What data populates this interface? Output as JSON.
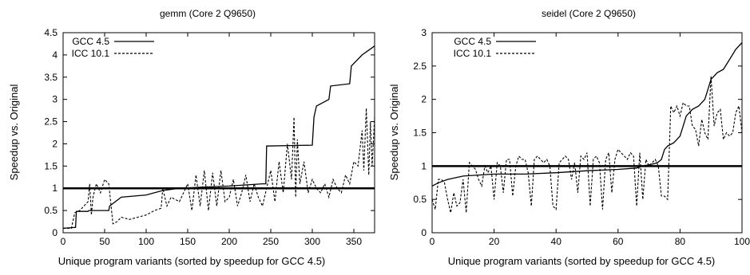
{
  "chart_data": [
    {
      "type": "line",
      "title": "gemm (Core 2 Q9650)",
      "xlabel": "Unique program variants (sorted by speedup for GCC 4.5)",
      "ylabel": "Speedup vs. Original",
      "xlim": [
        0,
        375
      ],
      "ylim": [
        0,
        4.5
      ],
      "xticks": [
        0,
        50,
        100,
        150,
        200,
        250,
        300,
        350
      ],
      "yticks": [
        0,
        0.5,
        1,
        1.5,
        2,
        2.5,
        3,
        3.5,
        4,
        4.5
      ],
      "baseline": 1,
      "legend_position": "top-left",
      "series": [
        {
          "name": "GCC 4.5",
          "style": "solid",
          "x": [
            0,
            15,
            16,
            30,
            31,
            55,
            56,
            70,
            100,
            120,
            140,
            160,
            200,
            240,
            244,
            245,
            300,
            302,
            305,
            320,
            322,
            345,
            347,
            360,
            375
          ],
          "y": [
            0.1,
            0.12,
            0.48,
            0.48,
            0.5,
            0.5,
            0.6,
            0.8,
            0.85,
            0.95,
            1.0,
            1.02,
            1.05,
            1.1,
            1.1,
            1.95,
            1.97,
            2.6,
            2.85,
            3.0,
            3.3,
            3.35,
            3.75,
            4.0,
            4.2
          ]
        },
        {
          "name": "ICC 10.1",
          "style": "dashed",
          "x": [
            0,
            10,
            14,
            20,
            25,
            30,
            32,
            34,
            36,
            40,
            45,
            50,
            55,
            60,
            65,
            70,
            80,
            90,
            100,
            110,
            118,
            120,
            125,
            130,
            140,
            150,
            155,
            160,
            165,
            170,
            175,
            180,
            185,
            190,
            195,
            200,
            205,
            210,
            215,
            220,
            225,
            230,
            235,
            240,
            245,
            250,
            255,
            260,
            265,
            270,
            275,
            278,
            280,
            282,
            285,
            290,
            295,
            300,
            305,
            310,
            315,
            320,
            325,
            330,
            335,
            340,
            345,
            350,
            355,
            360,
            362,
            365,
            368,
            370,
            372,
            375
          ],
          "y": [
            0.1,
            0.1,
            0.45,
            0.5,
            0.6,
            0.7,
            1.1,
            0.4,
            0.8,
            1.1,
            0.9,
            1.2,
            1.1,
            0.2,
            0.25,
            0.35,
            0.3,
            0.35,
            0.4,
            0.5,
            0.55,
            1.0,
            0.6,
            0.8,
            0.7,
            1.1,
            0.5,
            1.3,
            0.6,
            1.4,
            0.5,
            1.35,
            0.6,
            1.4,
            0.7,
            0.8,
            1.2,
            0.6,
            0.9,
            1.3,
            0.7,
            1.1,
            0.8,
            0.6,
            1.0,
            1.4,
            0.7,
            1.6,
            0.9,
            2.0,
            1.2,
            2.6,
            0.8,
            2.1,
            1.1,
            1.6,
            0.9,
            1.2,
            1.0,
            0.9,
            1.1,
            0.8,
            1.2,
            1.0,
            0.9,
            1.3,
            1.1,
            1.6,
            1.5,
            2.3,
            1.4,
            2.8,
            1.3,
            2.5,
            1.5,
            2.6
          ]
        }
      ]
    },
    {
      "type": "line",
      "title": "seidel (Core 2 Q9650)",
      "xlabel": "Unique program variants (sorted by speedup for GCC 4.5)",
      "ylabel": "Speedup vs. Original",
      "xlim": [
        0,
        100
      ],
      "ylim": [
        0,
        3
      ],
      "xticks": [
        0,
        20,
        40,
        60,
        80,
        100
      ],
      "xticklabels": [
        "0",
        "20",
        "40",
        "60",
        "80",
        "100"
      ],
      "yticks": [
        0,
        0.5,
        1,
        1.5,
        2,
        2.5,
        3
      ],
      "baseline": 1,
      "legend_position": "top-left",
      "series": [
        {
          "name": "GCC 4.5",
          "style": "solid",
          "x": [
            0,
            2,
            5,
            10,
            20,
            30,
            40,
            50,
            60,
            66,
            68,
            70,
            72,
            73,
            74,
            75,
            76,
            78,
            80,
            82,
            84,
            86,
            88,
            90,
            92,
            94,
            96,
            98,
            100
          ],
          "y": [
            0.7,
            0.75,
            0.8,
            0.85,
            0.88,
            0.88,
            0.9,
            0.93,
            0.95,
            0.97,
            1.0,
            1.02,
            1.04,
            1.06,
            1.1,
            1.25,
            1.3,
            1.35,
            1.45,
            1.75,
            1.85,
            1.9,
            2.0,
            2.3,
            2.4,
            2.45,
            2.6,
            2.75,
            2.85
          ]
        },
        {
          "name": "ICC 10.1",
          "style": "dashed",
          "x": [
            0,
            1,
            2,
            3,
            4,
            5,
            6,
            7,
            8,
            9,
            10,
            11,
            12,
            13,
            14,
            15,
            16,
            17,
            18,
            19,
            20,
            21,
            22,
            23,
            24,
            25,
            26,
            27,
            28,
            29,
            30,
            31,
            32,
            33,
            34,
            35,
            36,
            37,
            38,
            39,
            40,
            41,
            42,
            43,
            44,
            45,
            46,
            47,
            48,
            49,
            50,
            51,
            52,
            53,
            54,
            55,
            56,
            57,
            58,
            59,
            60,
            61,
            62,
            63,
            64,
            65,
            66,
            67,
            68,
            69,
            70,
            71,
            72,
            73,
            74,
            75,
            76,
            77,
            78,
            79,
            80,
            81,
            82,
            83,
            84,
            85,
            86,
            87,
            88,
            89,
            90,
            91,
            92,
            93,
            94,
            95,
            96,
            97,
            98,
            99,
            100
          ],
          "y": [
            0.5,
            0.35,
            0.8,
            0.8,
            0.75,
            0.5,
            0.3,
            0.6,
            0.4,
            0.45,
            0.8,
            0.3,
            1.05,
            1.0,
            0.95,
            0.8,
            0.7,
            1.0,
            0.9,
            1.0,
            0.5,
            1.05,
            1.0,
            0.6,
            1.1,
            1.1,
            0.55,
            1.0,
            1.15,
            1.1,
            1.1,
            0.9,
            0.4,
            1.1,
            1.15,
            1.1,
            1.05,
            1.1,
            1.0,
            0.4,
            0.35,
            1.05,
            1.1,
            1.15,
            1.1,
            0.8,
            1.05,
            0.6,
            1.15,
            1.1,
            1.2,
            0.4,
            1.1,
            1.15,
            1.05,
            0.35,
            1.1,
            1.2,
            0.6,
            1.1,
            1.25,
            1.2,
            1.15,
            1.1,
            1.2,
            1.15,
            0.4,
            1.2,
            0.5,
            1.1,
            1.0,
            1.05,
            1.1,
            1.0,
            0.55,
            0.55,
            0.5,
            1.9,
            1.8,
            1.9,
            1.75,
            1.95,
            1.9,
            1.9,
            1.6,
            1.55,
            1.3,
            1.7,
            1.5,
            1.4,
            2.35,
            1.6,
            1.8,
            1.85,
            1.4,
            1.5,
            1.45,
            1.5,
            1.8,
            1.9,
            1.5
          ]
        }
      ]
    }
  ]
}
